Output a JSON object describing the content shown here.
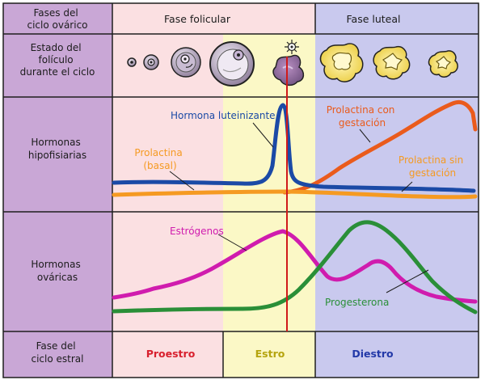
{
  "colors": {
    "sidebar": "#c9a7d6",
    "sidebar_border": "#1f1f1f",
    "pink_zone": "#fbe0e2",
    "yellow_zone": "#fbf8c6",
    "blue_zone": "#c9c9ee",
    "lh": "#1b4aa6",
    "prolactin_basal": "#f59a22",
    "prolactin_gestation": "#ea5b1c",
    "prolactin_no_gestation": "#f59a22",
    "estrogen": "#d01cae",
    "progesterone": "#2a8f38",
    "ovulation_line": "#d11a1a"
  },
  "rows": [
    {
      "id": "phases",
      "label": [
        "Fases del",
        "ciclo ovárico"
      ]
    },
    {
      "id": "follicle",
      "label": [
        "Estado del",
        "folículo",
        "durante el ciclo"
      ]
    },
    {
      "id": "pituitary",
      "label": [
        "Hormonas",
        "hipofisiarias"
      ]
    },
    {
      "id": "ovarian",
      "label": [
        "Hormonas",
        "ováricas"
      ]
    },
    {
      "id": "estral",
      "label": [
        "Fase del",
        "ciclo estral"
      ]
    }
  ],
  "phases": {
    "follicular": "Fase folicular",
    "luteal": "Fase luteal"
  },
  "follicle_icons": [
    "primordial-follicle-icon",
    "primary-follicle-icon",
    "secondary-follicle-icon",
    "antral-follicle-icon",
    "ovulating-follicle-icon",
    "corpus-luteum-icon-1",
    "corpus-luteum-icon-2",
    "corpus-luteum-icon-3"
  ],
  "labels": {
    "lh": "Hormona luteinizante",
    "prolactin_basal": [
      "Prolactina",
      "(basal)"
    ],
    "prolactin_gestation": [
      "Prolactina con",
      "gestación"
    ],
    "prolactin_no_gestation": [
      "Prolactina sin",
      "gestación"
    ],
    "estrogen": "Estrógenos",
    "progesterone": "Progesterona"
  },
  "stages": {
    "proestrus": "Proestro",
    "estrus": "Estro",
    "diestrus": "Diestro"
  },
  "stage_colors": {
    "proestrus": "#d8202e",
    "estrus": "#b5a40e",
    "diestrus": "#2339a8"
  }
}
